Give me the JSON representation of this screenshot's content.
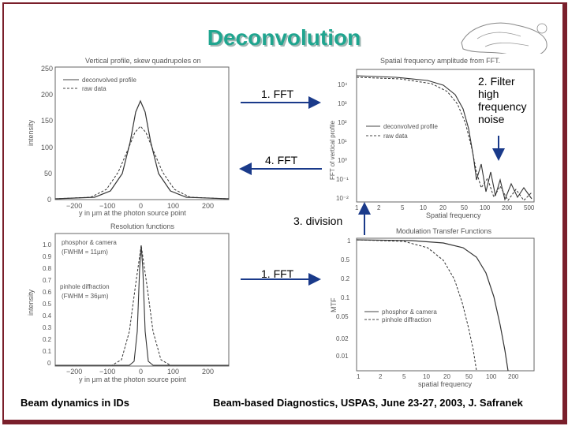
{
  "slide": {
    "title": "Deconvolution",
    "footer_left": "Beam dynamics in IDs",
    "footer_right": "Beam-based Diagnostics, USPAS, June 23-27, 2003, J. Safranek"
  },
  "steps": {
    "fft_top": "1. FFT",
    "ifft": "4. FFT",
    "division": "3. division",
    "fft_bottom": "1. FFT",
    "filter_line1": "2. Filter",
    "filter_line2": "high",
    "filter_line3": "frequency",
    "filter_line4": "noise"
  },
  "plots": {
    "top_left": {
      "title": "Vertical profile, skew quadrupoles on",
      "ylabel": "intensity",
      "xlabel": "y in µm at the photon source point",
      "legend": [
        "deconvolved profile",
        "raw data"
      ],
      "yticks": [
        "250",
        "200",
        "150",
        "100",
        "50",
        "0"
      ],
      "xticks": [
        "−200",
        "−100",
        "0",
        "100",
        "200"
      ]
    },
    "top_right": {
      "title": "Spatial frequency amplitude from FFT.",
      "ylabel": "FFT of vertical profile",
      "xlabel": "Spatial frequency",
      "legend": [
        "deconvolved profile",
        "raw data"
      ],
      "yticks": [
        "10⁴",
        "10³",
        "10²",
        "10¹",
        "10⁰",
        "10⁻¹",
        "10⁻²"
      ],
      "xticks": [
        "1",
        "2",
        "5",
        "10",
        "20",
        "50",
        "100",
        "200",
        "500"
      ]
    },
    "bottom_left": {
      "title": "Resolution functions",
      "ylabel": "intensity",
      "xlabel": "y in µm at the photon source point",
      "annotations": [
        "phosphor & camera",
        "(FWHM = 11µm)",
        "pinhole diffraction",
        "(FWHM = 36µm)"
      ],
      "yticks": [
        "1.0",
        "0.9",
        "0.8",
        "0.7",
        "0.6",
        "0.5",
        "0.4",
        "0.3",
        "0.2",
        "0.1",
        "0"
      ],
      "xticks": [
        "−200",
        "−100",
        "0",
        "100",
        "200"
      ]
    },
    "bottom_right": {
      "title": "Modulation Transfer Functions",
      "ylabel": "MTF",
      "xlabel": "spatial frequency",
      "legend": [
        "phosphor & camera",
        "pinhole diffraction"
      ],
      "yticks": [
        "1",
        "0.5",
        "0.2",
        "0.1",
        "0.05",
        "0.02",
        "0.01"
      ],
      "xticks": [
        "1",
        "2",
        "5",
        "10",
        "20",
        "50",
        "100",
        "200"
      ]
    }
  },
  "colors": {
    "title": "#1fa58f",
    "frame": "#7a1f2b",
    "arrow": "#1a3a8a"
  }
}
